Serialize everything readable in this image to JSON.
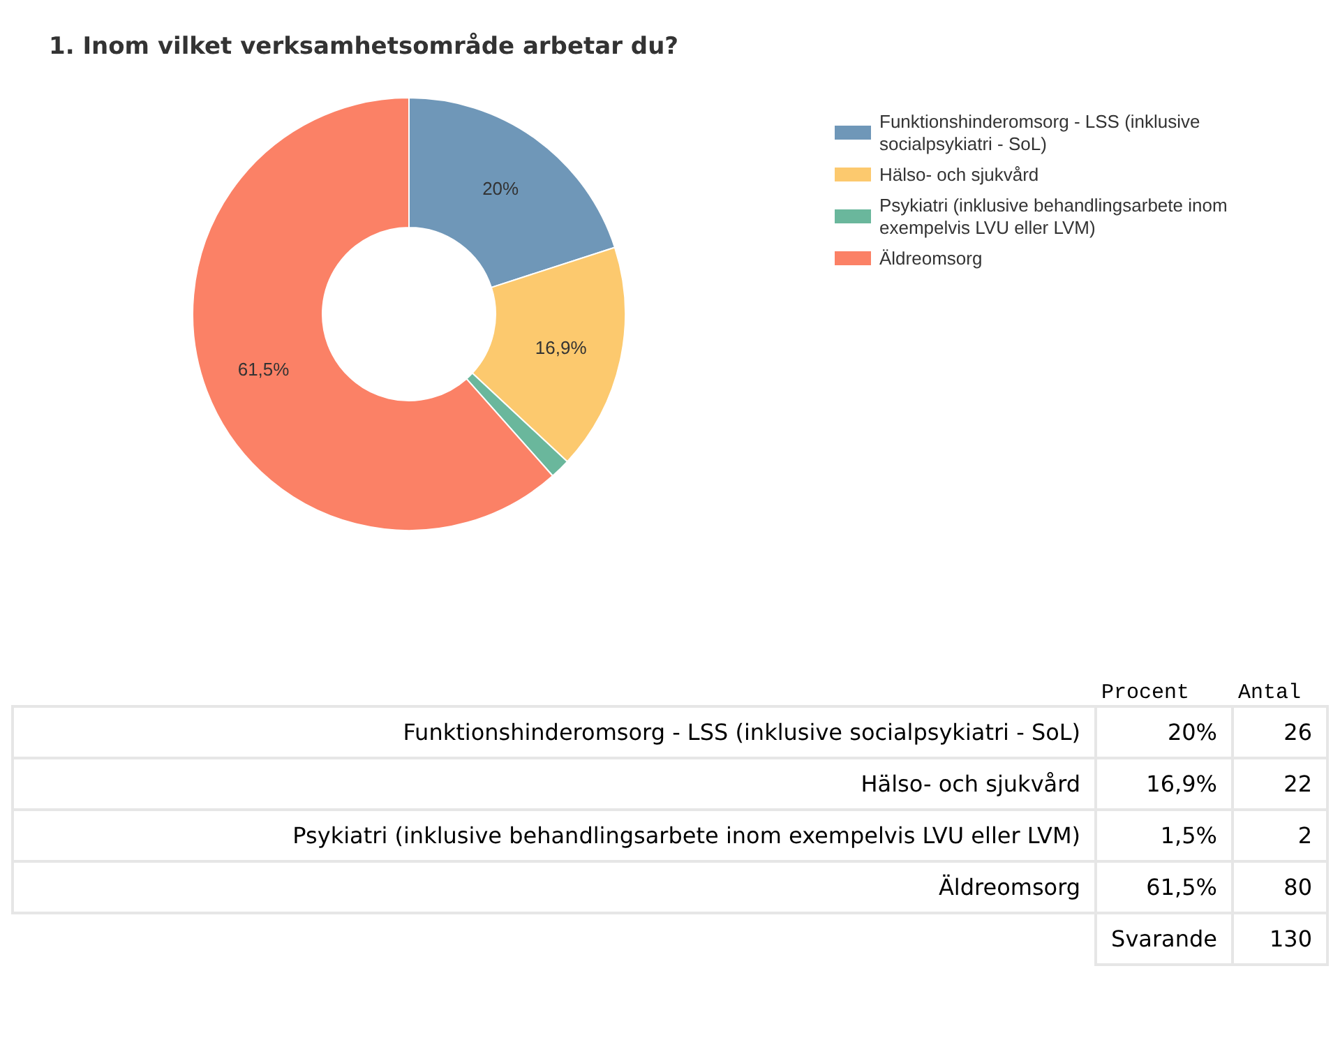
{
  "chart_data": {
    "type": "donut",
    "title": "1. Inom vilket verksamhetsområde arbetar du?",
    "categories": [
      "Funktionshinderomsorg - LSS (inklusive socialpsykiatri - SoL)",
      "Hälso- och sjukvård",
      "Psykiatri (inklusive behandlingsarbete inom exempelvis LVU eller LVM)",
      "Äldreomsorg"
    ],
    "values": [
      20,
      16.9,
      1.5,
      61.5
    ],
    "value_labels": [
      "20%",
      "16,9%",
      null,
      "61,5%"
    ],
    "colors": [
      "#6f97b8",
      "#fcc96e",
      "#6ab79c",
      "#fb8166"
    ],
    "legend": "top right",
    "annotations": [
      "Procent",
      "Antal",
      "1,5%",
      "26",
      "22",
      "2",
      "80",
      "Svarande",
      "130"
    ]
  }
}
